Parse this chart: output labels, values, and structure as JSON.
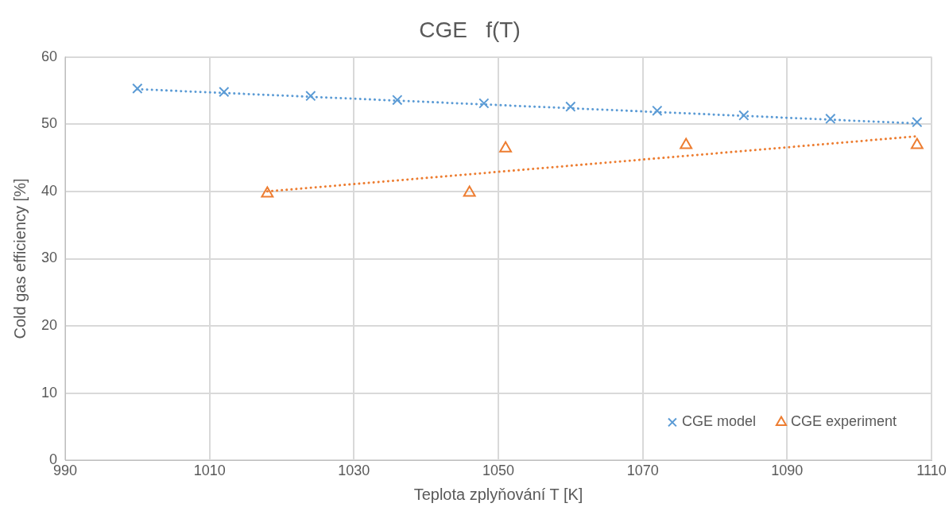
{
  "chart_data": {
    "type": "scatter",
    "title": "CGE   f(T)",
    "xlabel": "Teplota zplyňování T [K]",
    "ylabel": "Cold gas efficiency [%]",
    "xlim": [
      990,
      1110
    ],
    "xticks": [
      990,
      1010,
      1030,
      1050,
      1070,
      1090,
      1110
    ],
    "ylim": [
      0,
      60
    ],
    "yticks": [
      0,
      10,
      20,
      30,
      40,
      50,
      60
    ],
    "grid": true,
    "legend": "bottom right",
    "series": [
      {
        "name": "CGE model",
        "marker": "cross",
        "color": "#5b9bd5",
        "x": [
          1000,
          1012,
          1024,
          1036,
          1048,
          1060,
          1072,
          1084,
          1096,
          1108
        ],
        "values": [
          55.3,
          54.8,
          54.2,
          53.6,
          53.1,
          52.6,
          52.0,
          51.3,
          50.8,
          50.3
        ]
      },
      {
        "name": "CGE experiment",
        "marker": "triangle",
        "color": "#ed7d31",
        "x": [
          1018,
          1046,
          1051,
          1076,
          1108
        ],
        "values": [
          39.7,
          39.8,
          46.4,
          46.9,
          46.9
        ]
      },
      {
        "type": "line",
        "marker": "none",
        "line_style": "dotted",
        "color": "#5b9bd5",
        "x": [
          1000,
          1108
        ],
        "values": [
          55.2,
          50.1
        ]
      },
      {
        "type": "line",
        "marker": "none",
        "line_style": "dotted",
        "color": "#ed7d31",
        "x": [
          1018,
          1108
        ],
        "values": [
          40.0,
          48.2
        ]
      }
    ]
  }
}
